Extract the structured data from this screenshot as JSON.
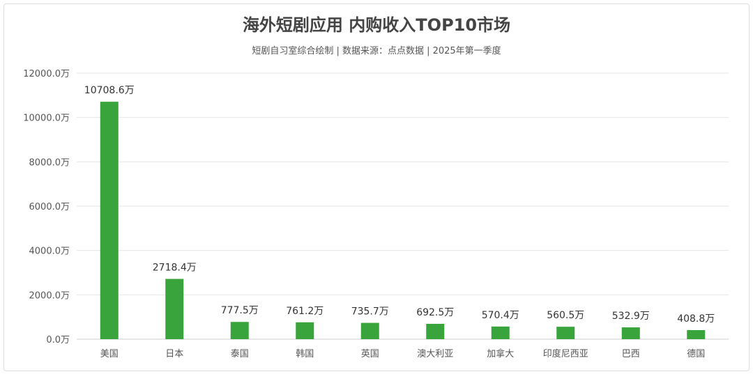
{
  "chart_data": {
    "type": "bar",
    "title": "海外短剧应用 内购收入TOP10市场",
    "subtitle": "短剧自习室综合绘制 | 数据来源：点点数据 | 2025年第一季度",
    "categories": [
      "美国",
      "日本",
      "泰国",
      "韩国",
      "英国",
      "澳大利亚",
      "加拿大",
      "印度尼西亚",
      "巴西",
      "德国"
    ],
    "values": [
      10708.6,
      2718.4,
      777.5,
      761.2,
      735.7,
      692.5,
      570.4,
      560.5,
      532.9,
      408.8
    ],
    "data_labels": [
      "10708.6万",
      "2718.4万",
      "777.5万",
      "761.2万",
      "735.7万",
      "692.5万",
      "570.4万",
      "560.5万",
      "532.9万",
      "408.8万"
    ],
    "yticks": [
      "0.0万",
      "2000.0万",
      "4000.0万",
      "6000.0万",
      "8000.0万",
      "10000.0万",
      "12000.0万"
    ],
    "ylim": [
      0,
      12000
    ],
    "grid": true,
    "bar_color": "#3aa43c"
  }
}
